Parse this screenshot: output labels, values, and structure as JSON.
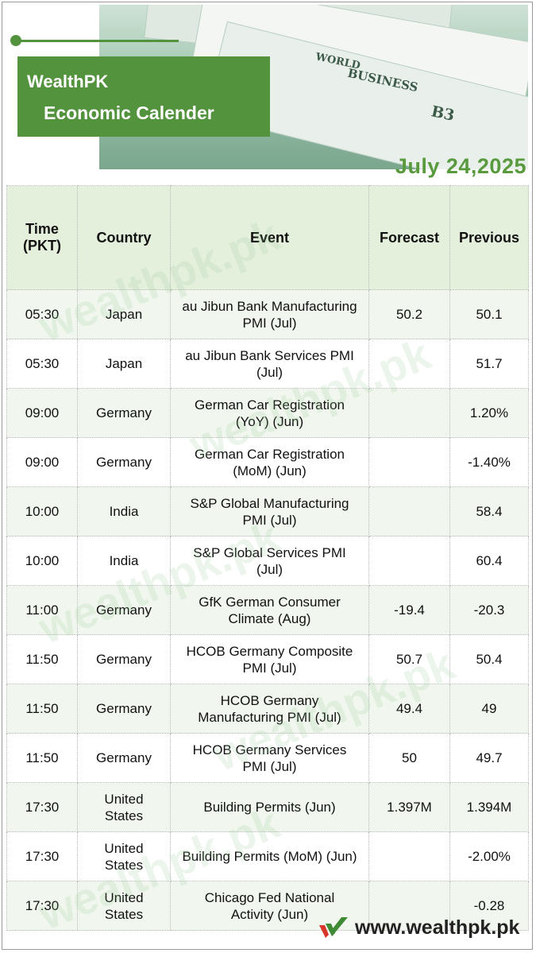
{
  "header": {
    "brand": "WealthPK",
    "subtitle": "Economic Calender",
    "date": "July 24,2025",
    "image_text": {
      "world": "WORLD",
      "business": "BUSINESS",
      "page": "B3"
    }
  },
  "table": {
    "columns": [
      "Time\n(PKT)",
      "Country",
      "Event",
      "Forecast",
      "Previous"
    ],
    "rows": [
      {
        "time": "05:30",
        "country": "Japan",
        "event": "au Jibun Bank Manufacturing PMI (Jul)",
        "forecast": "50.2",
        "previous": "50.1"
      },
      {
        "time": "05:30",
        "country": "Japan",
        "event": "au Jibun Bank Services PMI (Jul)",
        "forecast": "",
        "previous": "51.7"
      },
      {
        "time": "09:00",
        "country": "Germany",
        "event": "German Car Registration (YoY) (Jun)",
        "forecast": "",
        "previous": "1.20%"
      },
      {
        "time": "09:00",
        "country": "Germany",
        "event": "German Car Registration (MoM) (Jun)",
        "forecast": "",
        "previous": "-1.40%"
      },
      {
        "time": "10:00",
        "country": "India",
        "event": "S&P Global Manufacturing PMI (Jul)",
        "forecast": "",
        "previous": "58.4"
      },
      {
        "time": "10:00",
        "country": "India",
        "event": "S&P Global Services PMI (Jul)",
        "forecast": "",
        "previous": "60.4"
      },
      {
        "time": "11:00",
        "country": "Germany",
        "event": "GfK German Consumer Climate (Aug)",
        "forecast": "-19.4",
        "previous": "-20.3"
      },
      {
        "time": "11:50",
        "country": "Germany",
        "event": "HCOB Germany Composite PMI (Jul)",
        "forecast": "50.7",
        "previous": "50.4"
      },
      {
        "time": "11:50",
        "country": "Germany",
        "event": "HCOB Germany Manufacturing PMI (Jul)",
        "forecast": "49.4",
        "previous": "49"
      },
      {
        "time": "11:50",
        "country": "Germany",
        "event": "HCOB Germany Services PMI (Jul)",
        "forecast": "50",
        "previous": "49.7"
      },
      {
        "time": "17:30",
        "country": "United States",
        "event": "Building Permits (Jun)",
        "forecast": "1.397M",
        "previous": "1.394M"
      },
      {
        "time": "17:30",
        "country": "United States",
        "event": "Building Permits (MoM) (Jun)",
        "forecast": "",
        "previous": "-2.00%"
      },
      {
        "time": "17:30",
        "country": "United States",
        "event": "Chicago Fed National Activity (Jun)",
        "forecast": "",
        "previous": "-0.28"
      }
    ]
  },
  "watermark": "wealthpk.pk",
  "footer": {
    "url": "www.wealthpk.pk",
    "logo": "wealthpk-check-logo-icon"
  },
  "colors": {
    "brand_green": "#54933e",
    "header_row": "#e4f0dc",
    "alt_row": "#f1f7ee"
  }
}
